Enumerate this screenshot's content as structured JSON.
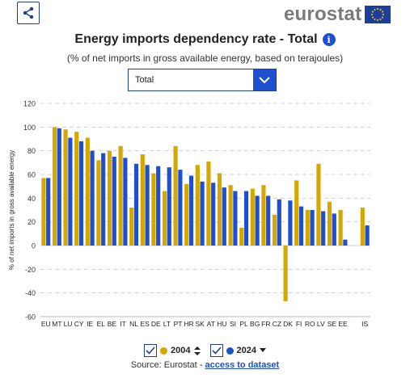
{
  "header": {
    "share_icon": "share-icon",
    "logo_text": "eurostat",
    "flag_icon": "eu-flag-icon"
  },
  "title": "Energy imports dependency rate - Total",
  "info_icon_glyph": "i",
  "subtitle": "(% of net imports in gross available energy, based on terajoules)",
  "selector": {
    "value": "Total"
  },
  "legend": {
    "items": [
      {
        "label": "2004",
        "color": "#d4a800",
        "sort_icon": "sort-icon"
      },
      {
        "label": "2024",
        "color": "#1f4fd1",
        "sort_icon": "sort-desc-icon"
      }
    ]
  },
  "source": {
    "prefix": "Source: Eurostat - ",
    "link": "access to dataset"
  },
  "colors": {
    "series_2004": "#d4a800",
    "series_2024": "#1f4fd1",
    "grid": "#cfcfcf",
    "accent": "#1d4fd0"
  },
  "chart_data": {
    "type": "bar",
    "ylabel": "% of net imports in gross available energy",
    "ylim": [
      -60,
      120
    ],
    "yticks": [
      -60,
      -40,
      -20,
      0,
      20,
      40,
      60,
      80,
      100,
      120
    ],
    "grid": true,
    "categories": [
      "EU",
      "MT",
      "LU",
      "CY",
      "IE",
      "EL",
      "BE",
      "IT",
      "NL",
      "ES",
      "DE",
      "LT",
      "PT",
      "HR",
      "SK",
      "AT",
      "HU",
      "SI",
      "PL",
      "BG",
      "FR",
      "CZ",
      "DK",
      "FI",
      "RO",
      "LV",
      "SE",
      "EE",
      "IS"
    ],
    "x_labels_shown": [
      "EU",
      "MT",
      "LU",
      "CY",
      "IE",
      "EL",
      "BE",
      "IT",
      "NL",
      "ES",
      "DE",
      "LT",
      "PT",
      "HR",
      "SK",
      "AT",
      "HU",
      "SI",
      "PL",
      "BG",
      "FR",
      "CZ",
      "DK",
      "FI",
      "RO",
      "LV",
      "SE",
      "EE",
      "",
      "IS"
    ],
    "series": [
      {
        "name": "2004",
        "values": [
          57,
          100,
          98,
          96,
          91,
          72,
          80,
          84,
          32,
          77,
          61,
          46,
          84,
          52,
          68,
          71,
          61,
          51,
          15,
          48,
          51,
          26,
          -47,
          55,
          30,
          69,
          37,
          30,
          32
        ]
      },
      {
        "name": "2024",
        "values": [
          57,
          99,
          91,
          88,
          80,
          78,
          75,
          74,
          69,
          68,
          67,
          66,
          64,
          59,
          54,
          53,
          49,
          46,
          46,
          42,
          42,
          39,
          38,
          33,
          30,
          29,
          27,
          5,
          17
        ]
      }
    ]
  }
}
